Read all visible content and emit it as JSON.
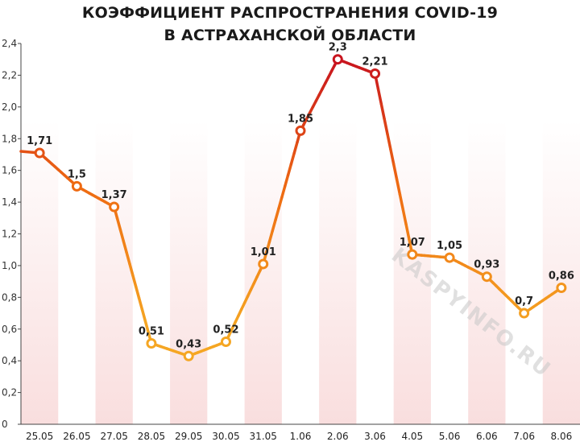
{
  "chart_data": {
    "type": "line",
    "title_line1": "КОЭФФИЦИЕНТ РАСПРОСТРАНЕНИЯ COVID-19",
    "title_line2": "В АСТРАХАНСКОЙ ОБЛАСТИ",
    "categories": [
      "25.05",
      "26.05",
      "27.05",
      "28.05",
      "29.05",
      "30.05",
      "31.05",
      "1.06",
      "2.06",
      "3.06",
      "4.05",
      "5.06",
      "6.06",
      "7.06",
      "8.06"
    ],
    "values": [
      1.71,
      1.5,
      1.37,
      0.51,
      0.43,
      0.52,
      1.01,
      1.85,
      2.3,
      2.21,
      1.07,
      1.05,
      0.93,
      0.7,
      0.86
    ],
    "value_labels": [
      "1,71",
      "1,5",
      "1,37",
      "0,51",
      "0,43",
      "0,52",
      "1,01",
      "1,85",
      "2,3",
      "2,21",
      "1,07",
      "1,05",
      "0,93",
      "0,7",
      "0,86"
    ],
    "y_ticks": [
      0,
      0.2,
      0.4,
      0.6,
      0.8,
      1.0,
      1.2,
      1.4,
      1.6,
      1.8,
      2.0,
      2.2,
      2.4
    ],
    "y_tick_labels": [
      "0",
      "0,2",
      "0,4",
      "0,6",
      "0,8",
      "1,0",
      "1,2",
      "1,4",
      "1,6",
      "1,8",
      "2,0",
      "2,2",
      "2,4"
    ],
    "ylim": [
      0,
      2.4
    ],
    "start_value": 1.72,
    "watermark": "KASPYINFO.RU",
    "colors": {
      "low": "#f5a623",
      "mid": "#ee6a12",
      "high": "#c8141e",
      "band": "#f9dede"
    }
  }
}
